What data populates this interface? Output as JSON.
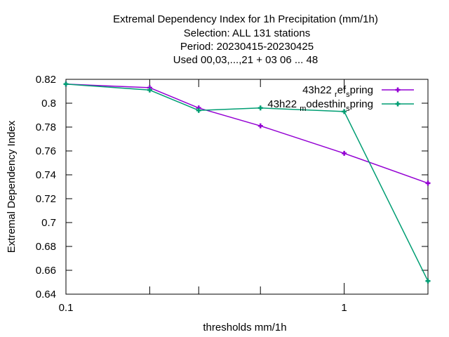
{
  "chart_data": {
    "type": "line",
    "title_lines": [
      "Extremal Dependency Index  for 1h Precipitation (mm/1h)",
      "Selection: ALL    131 stations",
      "Period: 20230415-20230425",
      "Used  00,03,...,21  + 03 06 ... 48"
    ],
    "xlabel": "thresholds mm/1h",
    "ylabel": "Extremal Dependency Index",
    "x_scale": "log",
    "xlim": [
      0.1,
      2
    ],
    "ylim": [
      0.64,
      0.82
    ],
    "x_ticks": [
      {
        "value": 0.1,
        "label": "0.1"
      },
      {
        "value": 0.2,
        "label": ""
      },
      {
        "value": 0.3,
        "label": ""
      },
      {
        "value": 0.5,
        "label": ""
      },
      {
        "value": 1,
        "label": "1"
      },
      {
        "value": 2,
        "label": ""
      }
    ],
    "y_ticks": [
      0.64,
      0.66,
      0.68,
      0.7,
      0.72,
      0.74,
      0.76,
      0.78,
      0.8,
      0.82
    ],
    "y_tick_labels": [
      "0.64",
      "0.66",
      "0.68",
      "0.7",
      "0.72",
      "0.74",
      "0.76",
      "0.78",
      "0.8",
      "0.82"
    ],
    "x": [
      0.1,
      0.2,
      0.3,
      0.5,
      1,
      2
    ],
    "series": [
      {
        "name": "43h22_ref_spring",
        "legend_parts": {
          "base": "43h22 ",
          "sub1": "r",
          "mid": "ef",
          "sub2": "s",
          "end": "pring"
        },
        "color": "#9400d3",
        "values": [
          0.816,
          0.813,
          0.796,
          0.781,
          0.758,
          0.733
        ]
      },
      {
        "name": "43h22_modesthin_spring",
        "legend_parts": {
          "base": "43h22 ",
          "sub1": "m",
          "mid": "odesthin",
          "sub2": "s",
          "end": "pring"
        },
        "color": "#009e73",
        "values": [
          0.816,
          0.811,
          0.794,
          0.796,
          0.793,
          0.651
        ]
      }
    ],
    "legend_position": "top-right",
    "grid": false
  }
}
